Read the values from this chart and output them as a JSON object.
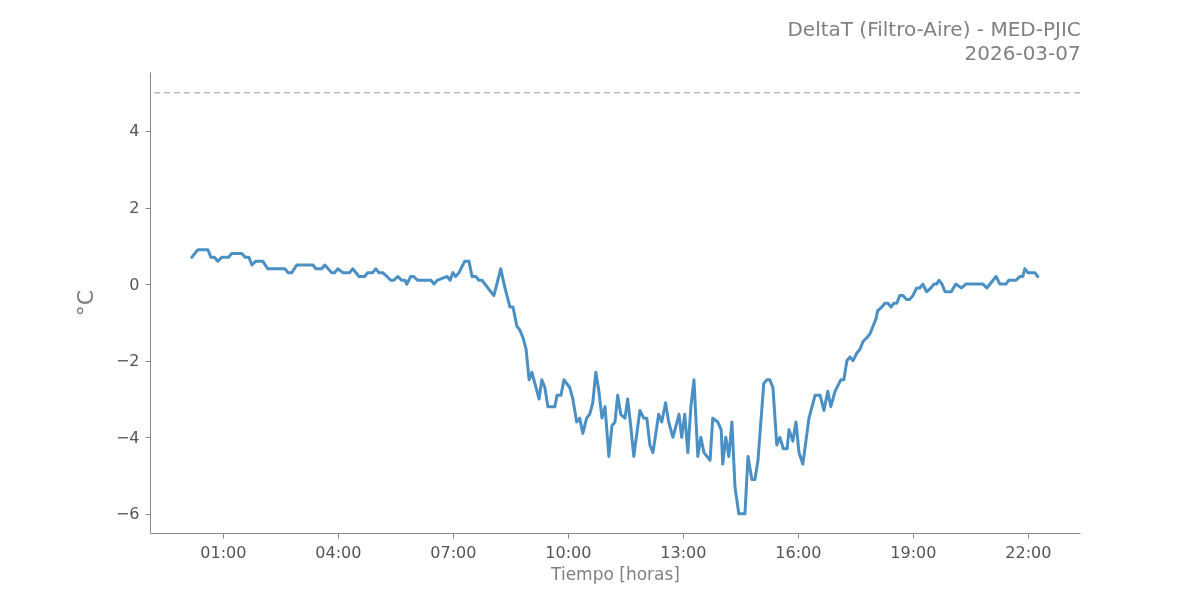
{
  "chart_data": {
    "type": "line",
    "title": "DeltaT (Filtro-Aire) - MED-PJIC",
    "subtitle": "2026-03-07",
    "xlabel": "Tiempo [horas]",
    "ylabel": "°C",
    "color": "#4a90c4",
    "line_style": "solid",
    "grid": false,
    "x": [
      0.19,
      0.35,
      0.61,
      0.69,
      0.78,
      0.87,
      0.97,
      1.15,
      1.23,
      1.49,
      1.59,
      1.68,
      1.76,
      1.86,
      2.04,
      2.17,
      2.62,
      2.7,
      2.8,
      2.93,
      3.35,
      3.43,
      3.58,
      3.66,
      3.84,
      3.92,
      4.0,
      4.13,
      4.31,
      4.39,
      4.55,
      4.7,
      4.78,
      4.91,
      4.99,
      5.07,
      5.17,
      5.28,
      5.38,
      5.46,
      5.56,
      5.67,
      5.75,
      5.8,
      5.9,
      5.98,
      6.08,
      6.43,
      6.51,
      6.59,
      6.85,
      6.93,
      7.0,
      7.07,
      7.16,
      7.26,
      7.31,
      7.42,
      7.5,
      7.6,
      7.68,
      7.76,
      8.07,
      8.25,
      8.36,
      8.49,
      8.57,
      8.67,
      8.75,
      8.83,
      8.91,
      8.99,
      9.06,
      9.25,
      9.32,
      9.4,
      9.48,
      9.66,
      9.72,
      9.82,
      9.9,
      10.05,
      10.13,
      10.23,
      10.31,
      10.39,
      10.49,
      10.57,
      10.65,
      10.73,
      10.81,
      10.89,
      10.97,
      11.07,
      11.15,
      11.23,
      11.3,
      11.38,
      11.49,
      11.56,
      11.64,
      11.72,
      11.8,
      11.88,
      11.98,
      12.06,
      12.14,
      12.22,
      12.37,
      12.45,
      12.55,
      12.63,
      12.74,
      12.9,
      12.97,
      13.05,
      13.13,
      13.21,
      13.29,
      13.39,
      13.47,
      13.55,
      13.71,
      13.78,
      13.91,
      14.0,
      14.04,
      14.12,
      14.2,
      14.28,
      14.36,
      14.46,
      14.62,
      14.7,
      14.8,
      14.88,
      14.96,
      15.11,
      15.19,
      15.27,
      15.35,
      15.45,
      15.53,
      15.62,
      15.72,
      15.77,
      15.87,
      15.95,
      16.03,
      16.13,
      16.29,
      16.45,
      16.58,
      16.68,
      16.78,
      16.86,
      16.97,
      17.12,
      17.2,
      17.28,
      17.36,
      17.44,
      17.54,
      17.62,
      17.7,
      17.8,
      17.88,
      17.96,
      18.04,
      18.08,
      18.19,
      18.27,
      18.35,
      18.43,
      18.5,
      18.58,
      18.66,
      18.74,
      18.84,
      18.92,
      19.0,
      19.1,
      19.18,
      19.26,
      19.36,
      19.47,
      19.55,
      19.62,
      19.68,
      19.76,
      19.84,
      20.0,
      20.12,
      20.27,
      20.38,
      20.83,
      20.93,
      21.17,
      21.27,
      21.43,
      21.5,
      21.69,
      21.79,
      21.87,
      21.92,
      22.0,
      22.18,
      22.26
    ],
    "values": [
      0.7,
      0.9,
      0.9,
      0.7,
      0.7,
      0.6,
      0.7,
      0.7,
      0.8,
      0.8,
      0.7,
      0.7,
      0.5,
      0.6,
      0.6,
      0.4,
      0.4,
      0.3,
      0.3,
      0.5,
      0.5,
      0.4,
      0.4,
      0.5,
      0.3,
      0.3,
      0.4,
      0.3,
      0.3,
      0.4,
      0.2,
      0.2,
      0.3,
      0.3,
      0.4,
      0.3,
      0.3,
      0.2,
      0.1,
      0.1,
      0.2,
      0.1,
      0.1,
      0.0,
      0.2,
      0.2,
      0.1,
      0.1,
      0.0,
      0.1,
      0.2,
      0.1,
      0.3,
      0.2,
      0.3,
      0.5,
      0.6,
      0.6,
      0.2,
      0.2,
      0.1,
      0.1,
      -0.3,
      0.4,
      -0.1,
      -0.6,
      -0.6,
      -1.1,
      -1.2,
      -1.4,
      -1.7,
      -2.5,
      -2.3,
      -3.0,
      -2.5,
      -2.7,
      -3.2,
      -3.2,
      -2.9,
      -2.9,
      -2.5,
      -2.7,
      -3.0,
      -3.6,
      -3.5,
      -3.9,
      -3.5,
      -3.4,
      -3.1,
      -2.3,
      -2.8,
      -3.5,
      -3.2,
      -4.5,
      -3.7,
      -3.6,
      -2.9,
      -3.4,
      -3.5,
      -3.0,
      -3.7,
      -4.5,
      -3.9,
      -3.3,
      -3.5,
      -3.5,
      -4.2,
      -4.4,
      -3.4,
      -3.6,
      -3.1,
      -3.6,
      -4.0,
      -3.4,
      -4.0,
      -3.4,
      -4.4,
      -3.2,
      -2.5,
      -4.5,
      -4.0,
      -4.4,
      -4.6,
      -3.5,
      -3.6,
      -3.8,
      -4.7,
      -4.0,
      -4.5,
      -3.6,
      -5.3,
      -6.0,
      -6.0,
      -4.5,
      -5.1,
      -5.1,
      -4.6,
      -2.6,
      -2.5,
      -2.5,
      -2.7,
      -4.2,
      -4.0,
      -4.3,
      -4.3,
      -3.8,
      -4.1,
      -3.6,
      -4.4,
      -4.7,
      -3.5,
      -2.9,
      -2.9,
      -3.3,
      -2.8,
      -3.2,
      -2.8,
      -2.5,
      -2.5,
      -2.0,
      -1.9,
      -2.0,
      -1.8,
      -1.7,
      -1.5,
      -1.4,
      -1.3,
      -1.1,
      -0.9,
      -0.7,
      -0.6,
      -0.5,
      -0.5,
      -0.6,
      -0.5,
      -0.5,
      -0.3,
      -0.3,
      -0.4,
      -0.4,
      -0.3,
      -0.1,
      -0.1,
      0.0,
      -0.2,
      -0.1,
      0.0,
      0.0,
      0.1,
      0.0,
      -0.2,
      -0.2,
      0.0,
      -0.1,
      0.0,
      0.0,
      -0.1,
      0.2,
      0.0,
      0.0,
      0.1,
      0.1,
      0.2,
      0.2,
      0.4,
      0.3,
      0.3,
      0.2
    ],
    "xlim": [
      -0.9,
      23.36
    ],
    "xticks": [
      {
        "value": 1,
        "label": "01:00"
      },
      {
        "value": 4,
        "label": "04:00"
      },
      {
        "value": 7,
        "label": "07:00"
      },
      {
        "value": 10,
        "label": "10:00"
      },
      {
        "value": 13,
        "label": "13:00"
      },
      {
        "value": 16,
        "label": "16:00"
      },
      {
        "value": 19,
        "label": "19:00"
      },
      {
        "value": 22,
        "label": "22:00"
      }
    ],
    "ylim": [
      -6.5,
      5.54
    ],
    "yticks": [
      {
        "value": -6,
        "label": "−6"
      },
      {
        "value": -4,
        "label": "−4"
      },
      {
        "value": -2,
        "label": "−2"
      },
      0,
      2,
      4
    ],
    "ref_lines": [
      {
        "axis": "y",
        "value": 5,
        "color": "#bbbbbb",
        "line_style": "dashed"
      }
    ]
  }
}
